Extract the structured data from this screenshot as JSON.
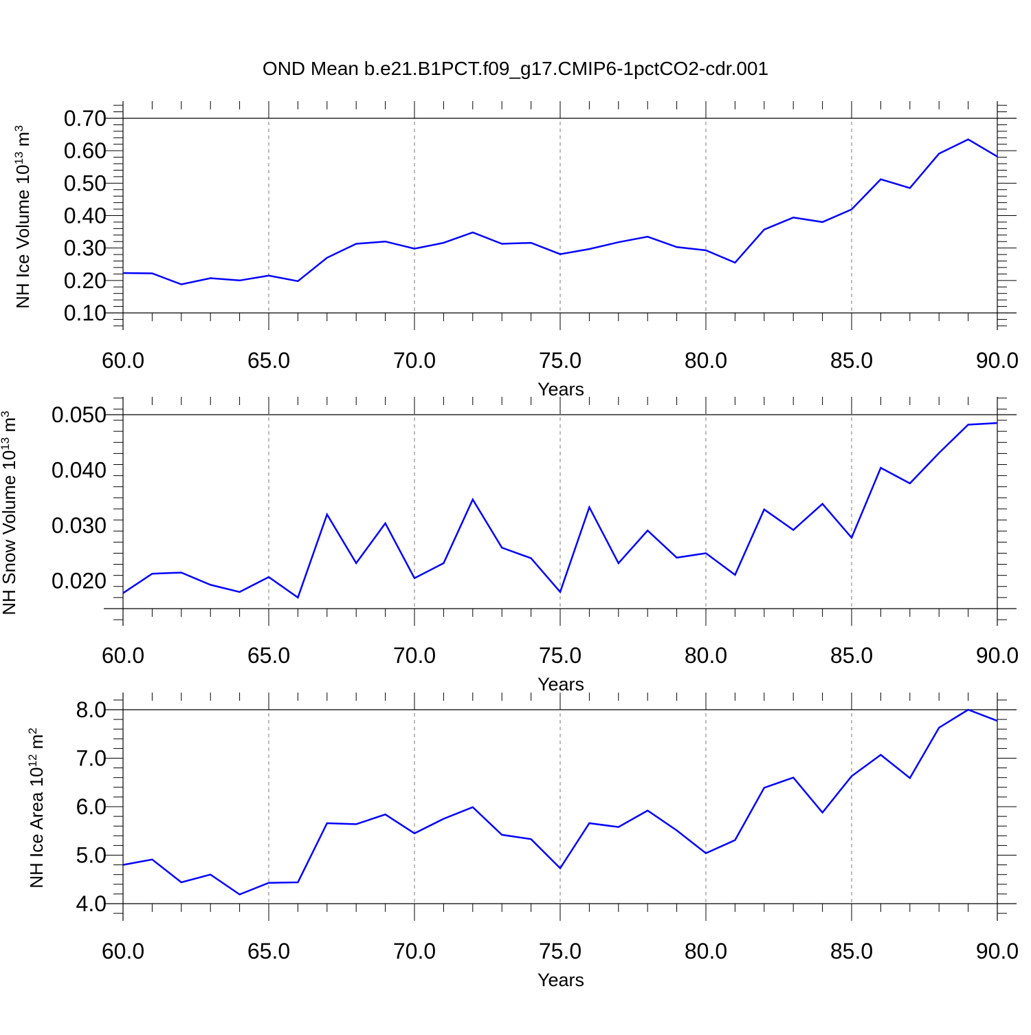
{
  "title": "OND Mean b.e21.B1PCT.f09_g17.CMIP6-1pctCO2-cdr.001",
  "line_color": "#0000ff",
  "chart_data": [
    {
      "type": "line",
      "xlabel": "Years",
      "ylabel": "NH Ice Volume 10",
      "ylabel_exp": "13",
      "ylabel_unit": " m",
      "ylabel_unit_exp": "3",
      "xlim": [
        60,
        90
      ],
      "ylim": [
        0.1,
        0.7
      ],
      "xticks": [
        60,
        65,
        70,
        75,
        80,
        85,
        90
      ],
      "xtick_labels": [
        "60.0",
        "65.0",
        "70.0",
        "75.0",
        "80.0",
        "85.0",
        "90.0"
      ],
      "yticks": [
        0.1,
        0.2,
        0.3,
        0.4,
        0.5,
        0.6,
        0.7
      ],
      "ytick_labels": [
        "0.10",
        "0.20",
        "0.30",
        "0.40",
        "0.50",
        "0.60",
        "0.70"
      ],
      "x": [
        60,
        61,
        62,
        63,
        64,
        65,
        66,
        67,
        68,
        69,
        70,
        71,
        72,
        73,
        74,
        75,
        76,
        77,
        78,
        79,
        80,
        81,
        82,
        83,
        84,
        85,
        86,
        87,
        88,
        89,
        90
      ],
      "values": [
        0.223,
        0.222,
        0.188,
        0.207,
        0.2,
        0.215,
        0.198,
        0.27,
        0.313,
        0.32,
        0.298,
        0.316,
        0.348,
        0.313,
        0.316,
        0.281,
        0.297,
        0.318,
        0.335,
        0.303,
        0.293,
        0.255,
        0.357,
        0.394,
        0.38,
        0.419,
        0.512,
        0.485,
        0.591,
        0.635,
        0.582
      ]
    },
    {
      "type": "line",
      "xlabel": "Years",
      "ylabel": "NH Snow Volume 10",
      "ylabel_exp": "13",
      "ylabel_unit": " m",
      "ylabel_unit_exp": "3",
      "xlim": [
        60,
        90
      ],
      "ylim": [
        0.015,
        0.05
      ],
      "xticks": [
        60,
        65,
        70,
        75,
        80,
        85,
        90
      ],
      "xtick_labels": [
        "60.0",
        "65.0",
        "70.0",
        "75.0",
        "80.0",
        "85.0",
        "90.0"
      ],
      "yticks": [
        0.02,
        0.03,
        0.04,
        0.05
      ],
      "ytick_labels": [
        "0.020",
        "0.030",
        "0.040",
        "0.050"
      ],
      "x": [
        60,
        61,
        62,
        63,
        64,
        65,
        66,
        67,
        68,
        69,
        70,
        71,
        72,
        73,
        74,
        75,
        76,
        77,
        78,
        79,
        80,
        81,
        82,
        83,
        84,
        85,
        86,
        87,
        88,
        89,
        90
      ],
      "values": [
        0.0178,
        0.0213,
        0.0215,
        0.0193,
        0.018,
        0.0207,
        0.017,
        0.032,
        0.0232,
        0.0304,
        0.0205,
        0.0232,
        0.0347,
        0.026,
        0.0241,
        0.018,
        0.0333,
        0.0232,
        0.0291,
        0.0242,
        0.025,
        0.0211,
        0.0329,
        0.0292,
        0.0339,
        0.0278,
        0.0404,
        0.0376,
        0.0431,
        0.0482,
        0.0485
      ]
    },
    {
      "type": "line",
      "xlabel": "Years",
      "ylabel": "NH Ice Area 10",
      "ylabel_exp": "12",
      "ylabel_unit": " m",
      "ylabel_unit_exp": "2",
      "xlim": [
        60,
        90
      ],
      "ylim": [
        4.0,
        8.0
      ],
      "xticks": [
        60,
        65,
        70,
        75,
        80,
        85,
        90
      ],
      "xtick_labels": [
        "60.0",
        "65.0",
        "70.0",
        "75.0",
        "80.0",
        "85.0",
        "90.0"
      ],
      "yticks": [
        4,
        5,
        6,
        7,
        8
      ],
      "ytick_labels": [
        "4.0",
        "5.0",
        "6.0",
        "7.0",
        "8.0"
      ],
      "x": [
        60,
        61,
        62,
        63,
        64,
        65,
        66,
        67,
        68,
        69,
        70,
        71,
        72,
        73,
        74,
        75,
        76,
        77,
        78,
        79,
        80,
        81,
        82,
        83,
        84,
        85,
        86,
        87,
        88,
        89,
        90
      ],
      "values": [
        4.8,
        4.91,
        4.44,
        4.6,
        4.19,
        4.43,
        4.44,
        5.66,
        5.64,
        5.84,
        5.45,
        5.75,
        5.99,
        5.42,
        5.33,
        4.73,
        5.66,
        5.58,
        5.92,
        5.51,
        5.04,
        5.31,
        6.39,
        6.6,
        5.88,
        6.63,
        7.07,
        6.59,
        7.63,
        8.0,
        7.77
      ]
    }
  ]
}
